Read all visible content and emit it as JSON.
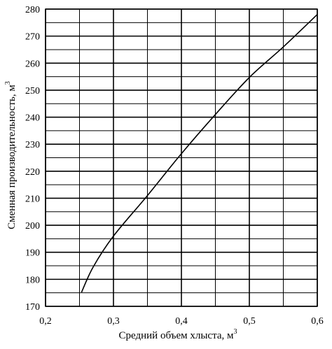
{
  "chart_data": {
    "type": "line",
    "xlabel": "Средний объем хлыста, м",
    "xlabel_sup": "3",
    "ylabel": "Сменная  производительность, м",
    "ylabel_sup": "3",
    "xlim": [
      0.2,
      0.6
    ],
    "ylim": [
      170,
      280
    ],
    "grid": true,
    "x_major_ticks": [
      0.2,
      0.3,
      0.4,
      0.5,
      0.6
    ],
    "x_minor_gridlines": [
      0.25,
      0.35,
      0.45,
      0.55
    ],
    "x_tick_labels": [
      "0,2",
      "0,3",
      "0,4",
      "0,5",
      "0,6"
    ],
    "y_ticks": [
      170,
      180,
      190,
      200,
      210,
      220,
      230,
      240,
      250,
      260,
      270,
      280
    ],
    "y_minor_gridlines": [
      175,
      185,
      195,
      205,
      215,
      225,
      235,
      245,
      255,
      265,
      275
    ],
    "y_tick_labels": [
      "170",
      "180",
      "190",
      "200",
      "210",
      "220",
      "230",
      "240",
      "250",
      "260",
      "270",
      "280"
    ],
    "series": [
      {
        "color": "#000000",
        "x": [
          0.253,
          0.27,
          0.3,
          0.35,
          0.4,
          0.45,
          0.5,
          0.55,
          0.6
        ],
        "y": [
          175.2,
          184.5,
          196,
          211,
          226.5,
          241,
          254.7,
          266,
          278
        ]
      }
    ]
  }
}
